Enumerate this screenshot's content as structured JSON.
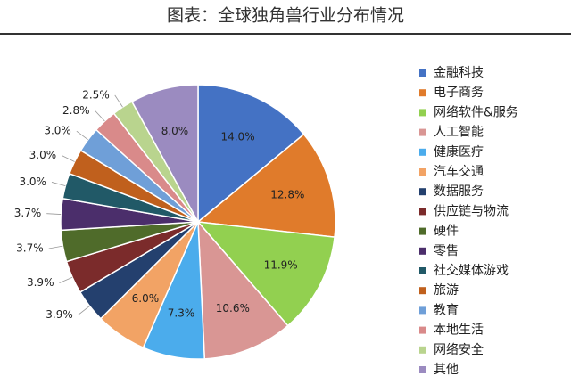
{
  "chart_data": {
    "type": "pie",
    "title": "图表：全球独角兽行业分布情况",
    "categories": [
      "金融科技",
      "电子商务",
      "网络软件&服务",
      "人工智能",
      "健康医疗",
      "汽车交通",
      "数据服务",
      "供应链与物流",
      "硬件",
      "零售",
      "社交媒体游戏",
      "旅游",
      "教育",
      "本地生活",
      "网络安全",
      "其他"
    ],
    "values": [
      14.0,
      12.8,
      11.9,
      10.6,
      7.3,
      6.0,
      3.9,
      3.9,
      3.7,
      3.7,
      3.0,
      3.0,
      3.0,
      2.8,
      2.5,
      8.0
    ],
    "value_labels": [
      "14.0%",
      "12.8%",
      "11.9%",
      "10.6%",
      "7.3%",
      "6.0%",
      "3.9%",
      "3.9%",
      "3.7%",
      "3.7%",
      "3.0%",
      "3.0%",
      "3.0%",
      "2.8%",
      "2.5%",
      "8.0%"
    ],
    "colors": [
      "#4472c4",
      "#e07b2b",
      "#92d050",
      "#d99694",
      "#4bacec",
      "#f2a365",
      "#24406e",
      "#7b2b2b",
      "#4f6b2a",
      "#4b2e6b",
      "#215967",
      "#c0601d",
      "#6f9fd8",
      "#d98a8a",
      "#b9d48e",
      "#9b8bc0"
    ],
    "legend": "right"
  }
}
